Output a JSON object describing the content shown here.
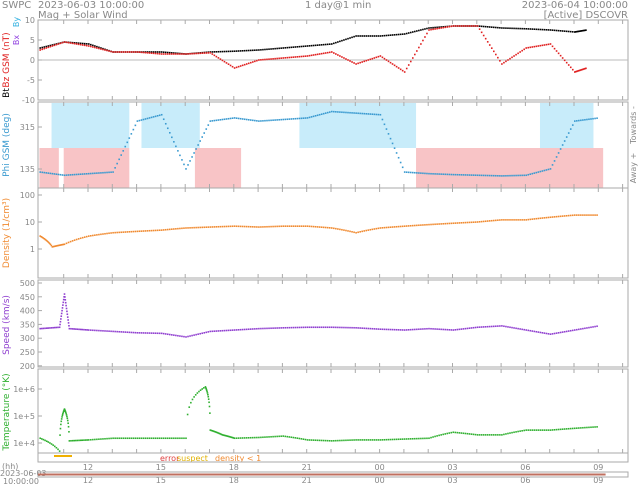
{
  "header": {
    "agency": "SWPC",
    "start": "2023-06-03 10:00:00",
    "subtitle": "Mag + Solar Wind",
    "span": "1 day@1 min",
    "end": "2023-06-04 10:00:00",
    "source": "[Active] DSCOVR"
  },
  "status": {
    "error": "error",
    "suspect": "suspect",
    "density": "density < 1"
  },
  "timeline": {
    "unit": "(hh)",
    "date": "2023-06-03",
    "time": "10:00:00"
  },
  "colors": {
    "bt": "#000000",
    "bz": "#e02020",
    "bx": "#9040e0",
    "by": "#30b0e0",
    "phi": "#3a9ad0",
    "towards": "#c8ecfa",
    "away": "#f8c4c6",
    "density": "#f08a30",
    "speed": "#9040d0",
    "temp": "#30b030"
  },
  "chart_data": [
    {
      "type": "scatter",
      "name": "mag",
      "ylabel_parts": [
        "Bt",
        "Bz GSM (nT)",
        "Bx",
        "By"
      ],
      "yticks": [
        "10",
        "5",
        "0",
        "-5",
        "-10"
      ],
      "ylim": [
        -10,
        10
      ],
      "x_hours": [
        0,
        1,
        2,
        3,
        4,
        5,
        6,
        7,
        8,
        9,
        10,
        11,
        12,
        13,
        14,
        15,
        16,
        17,
        18,
        19,
        20,
        21,
        22,
        22.5
      ],
      "series": [
        {
          "name": "Bt",
          "values": [
            3,
            4.5,
            4,
            2,
            2,
            2,
            1.5,
            2,
            2.2,
            2.5,
            3,
            3.5,
            4,
            6,
            6,
            6.5,
            8,
            8.5,
            8.5,
            8,
            7.8,
            7.5,
            7,
            7.5
          ]
        },
        {
          "name": "Bz",
          "values": [
            2.5,
            4.5,
            3.5,
            2,
            2,
            1.5,
            1.5,
            1.8,
            -2,
            0,
            0.5,
            1,
            2,
            -1,
            1,
            -3,
            7.5,
            8.5,
            8.5,
            -1,
            3,
            4,
            -3,
            -2
          ]
        }
      ]
    },
    {
      "type": "scatter",
      "name": "phi",
      "ylabel": "Phi GSM (deg)",
      "yticks": [
        "315",
        "135"
      ],
      "right_labels": [
        "Towards -",
        "Away +"
      ],
      "x_hours": [
        0,
        1,
        2,
        3,
        4,
        5,
        6,
        7,
        8,
        9,
        10,
        11,
        12,
        13,
        14,
        15,
        16,
        17,
        18,
        19,
        20,
        21,
        22,
        23
      ],
      "values": [
        140,
        130,
        135,
        140,
        300,
        320,
        150,
        300,
        310,
        300,
        305,
        310,
        330,
        325,
        320,
        140,
        135,
        132,
        130,
        128,
        130,
        150,
        300,
        310
      ],
      "towards_intervals": [
        [
          0.5,
          3.7
        ],
        [
          4.2,
          6.6
        ],
        [
          10.7,
          15.5
        ],
        [
          20.6,
          22.8
        ]
      ],
      "away_intervals": [
        [
          0,
          0.8
        ],
        [
          1,
          3.7
        ],
        [
          6.4,
          8.3
        ],
        [
          15.5,
          23.2
        ]
      ]
    },
    {
      "type": "scatter",
      "name": "density",
      "ylabel": "Density (1/cm³)",
      "yticks": [
        "100",
        "10",
        "1"
      ],
      "ylim": [
        0.1,
        100
      ],
      "log": true,
      "x_hours": [
        0,
        0.5,
        1,
        2,
        3,
        4,
        5,
        6,
        7,
        8,
        9,
        10,
        11,
        12,
        13,
        14,
        15,
        16,
        17,
        18,
        19,
        20,
        21,
        22,
        23
      ],
      "values": [
        3,
        1.2,
        1.5,
        3,
        4,
        4.5,
        5,
        6,
        6.5,
        7,
        6.5,
        7,
        7,
        6,
        4,
        6,
        7,
        8,
        9,
        10,
        12,
        12,
        15,
        18,
        18
      ]
    },
    {
      "type": "scatter",
      "name": "speed",
      "ylabel": "Speed (km/s)",
      "yticks": [
        "500",
        "450",
        "400",
        "350",
        "300",
        "250",
        "200"
      ],
      "ylim": [
        200,
        500
      ],
      "x_hours": [
        0,
        0.8,
        1,
        1.2,
        2,
        3,
        4,
        5,
        6,
        7,
        8,
        9,
        10,
        11,
        12,
        13,
        14,
        15,
        16,
        17,
        18,
        19,
        20,
        21,
        22,
        23
      ],
      "values": [
        335,
        340,
        460,
        335,
        330,
        325,
        320,
        318,
        305,
        325,
        330,
        335,
        338,
        340,
        340,
        338,
        333,
        330,
        335,
        330,
        340,
        345,
        330,
        315,
        330,
        345
      ]
    },
    {
      "type": "scatter",
      "name": "temperature",
      "ylabel": "Temperature (°K)",
      "yticks": [
        "1e+6",
        "1e+5",
        "1e+4"
      ],
      "ylim": [
        3000,
        3000000
      ],
      "log": true,
      "x_hours": [
        0,
        0.8,
        1,
        1.2,
        2,
        3,
        4,
        5,
        6,
        6.8,
        7,
        7.5,
        8,
        9,
        10,
        11,
        12,
        13,
        14,
        15,
        16,
        17,
        18,
        19,
        20,
        21,
        22,
        23
      ],
      "values": [
        15000,
        5000,
        180000,
        12000,
        13000,
        15000,
        15000,
        15000,
        15000,
        1200000,
        30000,
        20000,
        15000,
        16000,
        18000,
        13000,
        12000,
        13000,
        13000,
        14000,
        15000,
        25000,
        20000,
        20000,
        30000,
        30000,
        35000,
        40000
      ]
    },
    {
      "type": "axis",
      "xticks": [
        "12",
        "15",
        "18",
        "21",
        "00",
        "03",
        "06",
        "09"
      ],
      "tick_hours": [
        2,
        5,
        8,
        11,
        14,
        17,
        20,
        23
      ]
    }
  ]
}
